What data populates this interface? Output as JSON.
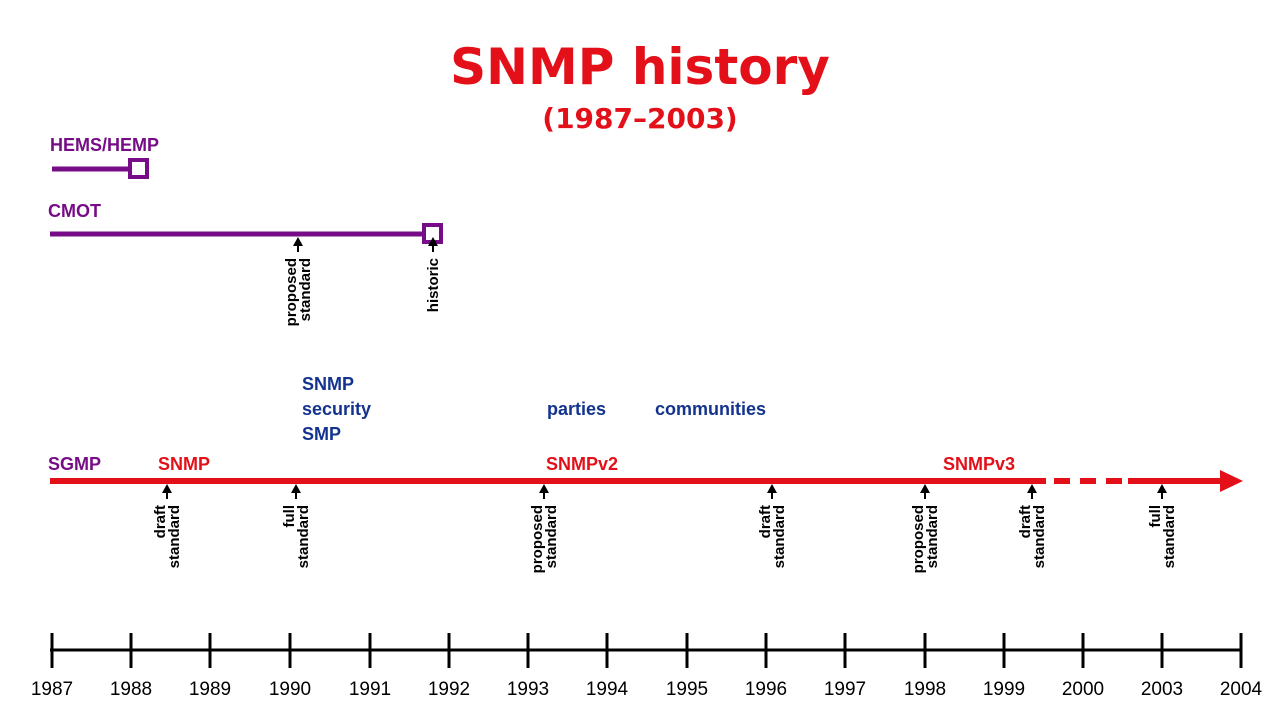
{
  "title": "SNMP history",
  "subtitle": "(1987–2003)",
  "colors": {
    "red": "#e3101a",
    "purple": "#760d86",
    "blue": "#13338f",
    "black": "#000000"
  },
  "hems": {
    "label": "HEMS/HEMP",
    "start": 1987,
    "end": 1988.1
  },
  "cmot": {
    "label": "CMOT",
    "start": 1987,
    "end": 1991.8
  },
  "cmot_events": [
    {
      "at": 1990.1,
      "lines": [
        "proposed",
        "standard"
      ]
    },
    {
      "at": 1991.8,
      "lines": [
        "historic"
      ]
    }
  ],
  "snmp": {
    "sgmp_label": "SGMP",
    "snmp_label": "SNMP",
    "snmpv2_label": "SNMPv2",
    "snmpv3_label": "SNMPv3"
  },
  "notes": {
    "snmp_security_smp": [
      "SNMP",
      "security",
      "SMP"
    ],
    "parties": "parties",
    "communities": "communities"
  },
  "snmp_events": [
    {
      "at": 1988.45,
      "lines": [
        "draft",
        "standard"
      ]
    },
    {
      "at": 1990.08,
      "lines": [
        "full",
        "standard"
      ]
    },
    {
      "at": 1993.2,
      "lines": [
        "proposed",
        "standard"
      ]
    },
    {
      "at": 1996.08,
      "lines": [
        "draft",
        "standard"
      ]
    },
    {
      "at": 1998.0,
      "lines": [
        "proposed",
        "standard"
      ]
    },
    {
      "at": 1999.35,
      "lines": [
        "draft",
        "standard"
      ]
    },
    {
      "at": 2003.0,
      "lines": [
        "full",
        "standard"
      ]
    }
  ],
  "axis_years": [
    "1987",
    "1988",
    "1989",
    "1990",
    "1991",
    "1992",
    "1993",
    "1994",
    "1995",
    "1996",
    "1997",
    "1998",
    "1999",
    "2000",
    "2003",
    "2004"
  ]
}
